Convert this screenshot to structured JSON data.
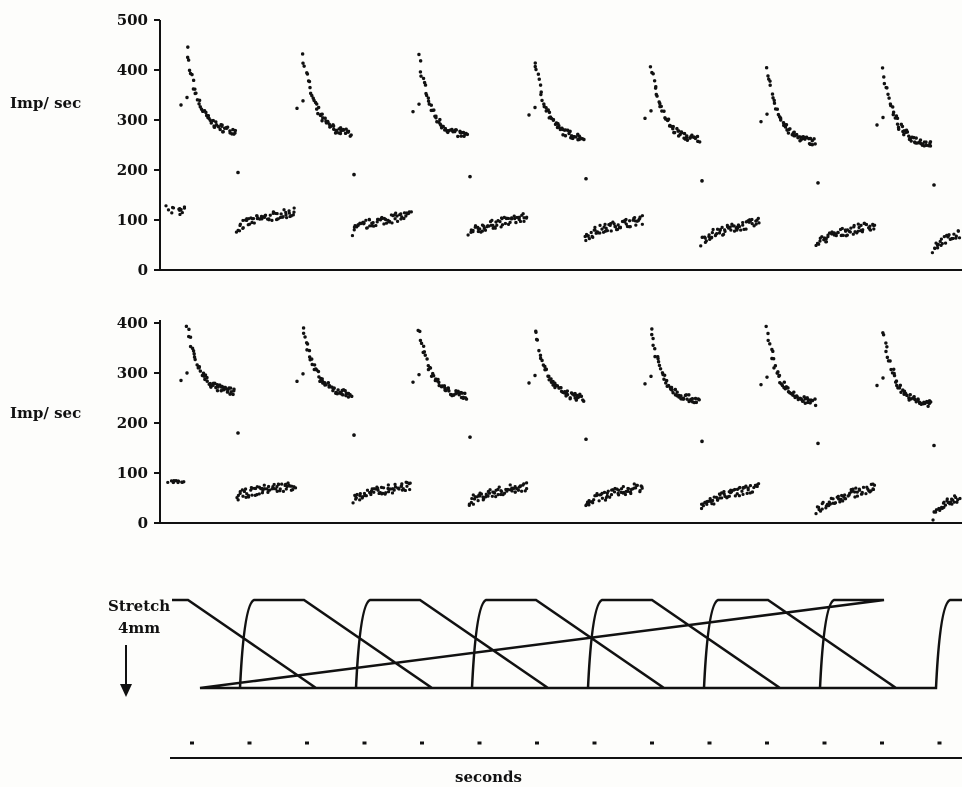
{
  "chart_data": [
    {
      "type": "scatter",
      "panel": "top",
      "ylabel": "Imp/ sec",
      "ylim": [
        0,
        500
      ],
      "yticks": [
        0,
        100,
        200,
        300,
        400,
        500
      ],
      "cycles": 7,
      "peak_range": [
        440,
        400
      ],
      "decay_end_range": [
        275,
        250
      ],
      "hold_start_range": [
        80,
        40
      ],
      "hold_end_range": [
        115,
        85
      ],
      "first_partial_hold": [
        110,
        130
      ]
    },
    {
      "type": "scatter",
      "panel": "middle",
      "ylabel": "Imp/ sec",
      "ylim": [
        0,
        400
      ],
      "yticks": [
        0,
        100,
        200,
        300,
        400
      ],
      "cycles": 7,
      "peak_range": [
        395,
        385
      ],
      "decay_end_range": [
        260,
        235
      ],
      "hold_start_range": [
        50,
        10
      ],
      "hold_end_range": [
        75,
        70
      ],
      "first_partial_hold": [
        80,
        85
      ]
    },
    {
      "type": "line",
      "panel": "stretch",
      "label_line1": "Stretch",
      "label_line2": "4mm",
      "arrow_icon": "down-arrow-icon",
      "cycles": 7
    },
    {
      "type": "line",
      "panel": "time",
      "xlabel": "seconds",
      "marks": 14
    }
  ]
}
